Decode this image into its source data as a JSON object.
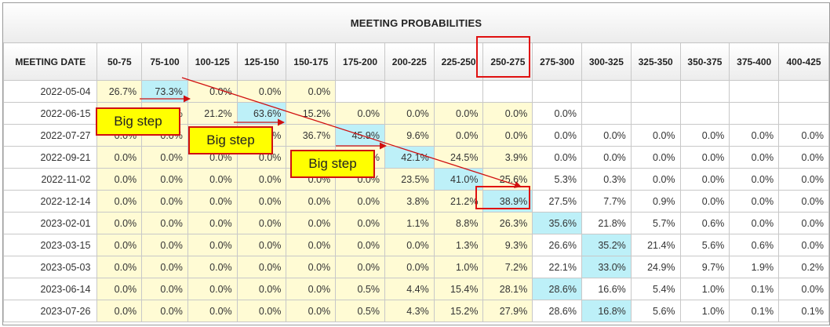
{
  "chart_data": {
    "type": "table",
    "title": "MEETING PROBABILITIES",
    "row_header": "MEETING DATE",
    "columns": [
      "50-75",
      "75-100",
      "100-125",
      "125-150",
      "150-175",
      "175-200",
      "200-225",
      "225-250",
      "250-275",
      "275-300",
      "300-325",
      "325-350",
      "350-375",
      "375-400",
      "400-425"
    ],
    "rows": [
      {
        "date": "2022-05-04",
        "values": [
          "26.7%",
          "73.3%",
          "0.0%",
          "0.0%",
          "0.0%",
          "",
          "",
          "",
          "",
          "",
          "",
          "",
          "",
          "",
          ""
        ]
      },
      {
        "date": "2022-06-15",
        "values": [
          "0.0%",
          "0.0%",
          "21.2%",
          "63.6%",
          "15.2%",
          "0.0%",
          "0.0%",
          "0.0%",
          "0.0%",
          "0.0%",
          "",
          "",
          "",
          "",
          ""
        ]
      },
      {
        "date": "2022-07-27",
        "values": [
          "0.0%",
          "0.0%",
          "0.0%",
          "0.0%",
          "36.7%",
          "45.9%",
          "9.6%",
          "0.0%",
          "0.0%",
          "0.0%",
          "0.0%",
          "0.0%",
          "0.0%",
          "0.0%",
          "0.0%"
        ]
      },
      {
        "date": "2022-09-21",
        "values": [
          "0.0%",
          "0.0%",
          "0.0%",
          "0.0%",
          "0.0%",
          "0.0%",
          "42.1%",
          "24.5%",
          "3.9%",
          "0.0%",
          "0.0%",
          "0.0%",
          "0.0%",
          "0.0%",
          "0.0%"
        ]
      },
      {
        "date": "2022-11-02",
        "values": [
          "0.0%",
          "0.0%",
          "0.0%",
          "0.0%",
          "0.0%",
          "0.0%",
          "23.5%",
          "41.0%",
          "25.6%",
          "5.3%",
          "0.3%",
          "0.0%",
          "0.0%",
          "0.0%",
          "0.0%"
        ]
      },
      {
        "date": "2022-12-14",
        "values": [
          "0.0%",
          "0.0%",
          "0.0%",
          "0.0%",
          "0.0%",
          "0.0%",
          "3.8%",
          "21.2%",
          "38.9%",
          "27.5%",
          "7.7%",
          "0.9%",
          "0.0%",
          "0.0%",
          "0.0%"
        ]
      },
      {
        "date": "2023-02-01",
        "values": [
          "0.0%",
          "0.0%",
          "0.0%",
          "0.0%",
          "0.0%",
          "0.0%",
          "1.1%",
          "8.8%",
          "26.3%",
          "35.6%",
          "21.8%",
          "5.7%",
          "0.6%",
          "0.0%",
          "0.0%"
        ]
      },
      {
        "date": "2023-03-15",
        "values": [
          "0.0%",
          "0.0%",
          "0.0%",
          "0.0%",
          "0.0%",
          "0.0%",
          "0.0%",
          "1.3%",
          "9.3%",
          "26.6%",
          "35.2%",
          "21.4%",
          "5.6%",
          "0.6%",
          "0.0%"
        ]
      },
      {
        "date": "2023-05-03",
        "values": [
          "0.0%",
          "0.0%",
          "0.0%",
          "0.0%",
          "0.0%",
          "0.0%",
          "0.0%",
          "1.0%",
          "7.2%",
          "22.1%",
          "33.0%",
          "24.9%",
          "9.7%",
          "1.9%",
          "0.2%"
        ]
      },
      {
        "date": "2023-06-14",
        "values": [
          "0.0%",
          "0.0%",
          "0.0%",
          "0.0%",
          "0.0%",
          "0.5%",
          "4.4%",
          "15.4%",
          "28.1%",
          "28.6%",
          "16.6%",
          "5.4%",
          "1.0%",
          "0.1%",
          "0.0%"
        ]
      },
      {
        "date": "2023-07-26",
        "values": [
          "0.0%",
          "0.0%",
          "0.0%",
          "0.0%",
          "0.0%",
          "0.5%",
          "4.3%",
          "15.2%",
          "27.9%",
          "28.6%",
          "16.8%",
          "5.6%",
          "1.0%",
          "0.1%",
          "0.1%"
        ]
      }
    ],
    "annotations": [
      {
        "text": "Big step"
      },
      {
        "text": "Big step"
      },
      {
        "text": "Big step"
      }
    ],
    "colors": {
      "shaded": "#fffbd4",
      "highlight": "#bdf0f8",
      "annotation_fill": "#ffff00",
      "annotation_stroke": "#e01010"
    }
  }
}
